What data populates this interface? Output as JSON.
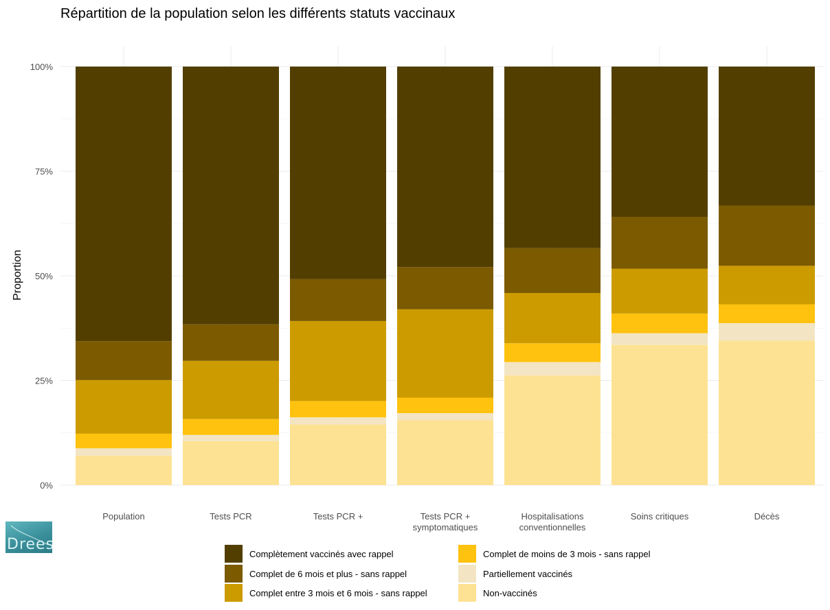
{
  "chart_data": {
    "type": "bar",
    "stacked": true,
    "title": "Répartition de la population selon les différents statuts vaccinaux",
    "ylabel": "Proportion",
    "xlabel": "",
    "ylim": [
      0,
      1
    ],
    "yticks": [
      "0%",
      "25%",
      "50%",
      "75%",
      "100%"
    ],
    "grid": true,
    "legend_position": "bottom",
    "categories": [
      [
        "Population"
      ],
      [
        "Tests PCR"
      ],
      [
        "Tests PCR +"
      ],
      [
        "Tests PCR +",
        "symptomatiques"
      ],
      [
        "Hospitalisations",
        "conventionnelles"
      ],
      [
        "Soins critiques"
      ],
      [
        "Décès"
      ]
    ],
    "series": [
      {
        "name": "Non-vaccinés",
        "color": "#fde293",
        "values": [
          0.07,
          0.105,
          0.145,
          0.155,
          0.262,
          0.335,
          0.345
        ]
      },
      {
        "name": "Partiellement vaccinés",
        "color": "#f3e5c3",
        "values": [
          0.018,
          0.015,
          0.017,
          0.017,
          0.032,
          0.028,
          0.042
        ]
      },
      {
        "name": "Complet de moins de 3 mois - sans rappel",
        "color": "#fec20f",
        "values": [
          0.035,
          0.038,
          0.039,
          0.037,
          0.045,
          0.047,
          0.045
        ]
      },
      {
        "name": "Complet entre 3 mois et 6 mois - sans rappel",
        "color": "#cc9b00",
        "values": [
          0.128,
          0.139,
          0.191,
          0.211,
          0.12,
          0.107,
          0.092
        ]
      },
      {
        "name": "Complet de 6 mois et plus - sans rappel",
        "color": "#7c5a00",
        "values": [
          0.093,
          0.087,
          0.1,
          0.101,
          0.107,
          0.124,
          0.144
        ]
      },
      {
        "name": "Complètement vaccinés avec rappel",
        "color": "#523f00",
        "values": [
          0.656,
          0.616,
          0.508,
          0.479,
          0.434,
          0.359,
          0.332
        ]
      }
    ],
    "legend_order": [
      "Complètement vaccinés avec rappel",
      "Complet de 6 mois et plus - sans rappel",
      "Complet entre 3 mois et 6 mois - sans rappel",
      "Complet de moins de 3 mois - sans rappel",
      "Partiellement vaccinés",
      "Non-vaccinés"
    ]
  },
  "logo": {
    "text": "Drees"
  }
}
